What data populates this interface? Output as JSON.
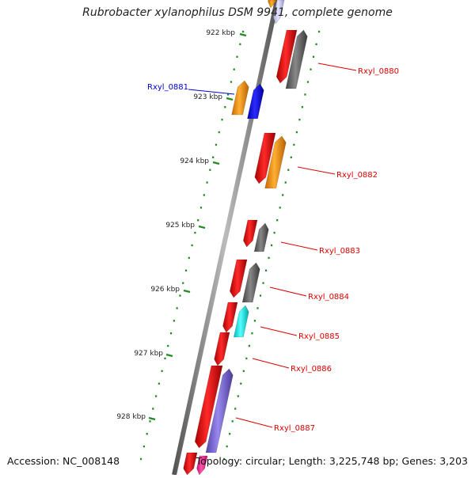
{
  "title": "Rubrobacter xylanophilus DSM 9941, complete genome",
  "accession": "Accession: NC_008148",
  "topology": "Topology: circular; Length: 3,225,748 bp; Genes: 3,203",
  "ticks": [
    "922 kbp",
    "923 kbp",
    "924 kbp",
    "925 kbp",
    "926 kbp",
    "927 kbp",
    "928 kbp"
  ],
  "gene_labels": [
    {
      "text": "Rxyl_0880",
      "color": "#dd0000"
    },
    {
      "text": "Rxyl_0881",
      "color": "#0000cc"
    },
    {
      "text": "Rxyl_0882",
      "color": "#dd0000"
    },
    {
      "text": "Rxyl_0883",
      "color": "#dd0000"
    },
    {
      "text": "Rxyl_0884",
      "color": "#dd0000"
    },
    {
      "text": "Rxyl_0885",
      "color": "#dd0000"
    },
    {
      "text": "Rxyl_0886",
      "color": "#dd0000"
    },
    {
      "text": "Rxyl_0887",
      "color": "#dd0000"
    }
  ],
  "colors": {
    "forward_cds": "#ff0000",
    "orange_feature": "#ff9900",
    "gray_feature": "#666666",
    "blue_feature": "#0000ff",
    "cyan_feature": "#00ffff",
    "violet_feature": "#7766cc",
    "pink_feature": "#ff3399",
    "pale_feature": "#ccccff",
    "dotted_ring": "#228b22",
    "backbone": "#808080"
  }
}
